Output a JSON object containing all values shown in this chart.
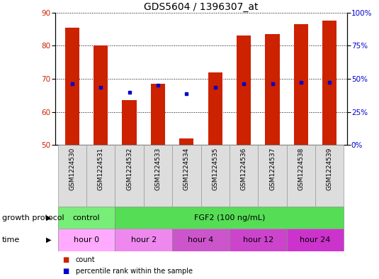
{
  "title": "GDS5604 / 1396307_at",
  "samples": [
    "GSM1224530",
    "GSM1224531",
    "GSM1224532",
    "GSM1224533",
    "GSM1224534",
    "GSM1224535",
    "GSM1224536",
    "GSM1224537",
    "GSM1224538",
    "GSM1224539"
  ],
  "count_values": [
    85.5,
    80.0,
    63.5,
    68.5,
    52.0,
    72.0,
    83.0,
    83.5,
    86.5,
    87.5
  ],
  "percentile_values": [
    68.5,
    67.5,
    66.0,
    68.0,
    65.5,
    67.5,
    68.5,
    68.5,
    69.0,
    69.0
  ],
  "ylim_left": [
    50,
    90
  ],
  "ylim_right": [
    0,
    100
  ],
  "yticks_left": [
    50,
    60,
    70,
    80,
    90
  ],
  "yticks_right": [
    0,
    25,
    50,
    75,
    100
  ],
  "ytick_labels_right": [
    "0%",
    "25%",
    "50%",
    "75%",
    "100%"
  ],
  "bar_color": "#cc2200",
  "percentile_color": "#0000cc",
  "bar_width": 0.5,
  "bar_bottom": 50,
  "growth_protocol_label": "growth protocol",
  "time_label": "time",
  "protocol_groups": [
    {
      "label": "control",
      "samples": [
        0,
        1
      ],
      "color": "#77ee77"
    },
    {
      "label": "FGF2 (100 ng/mL)",
      "samples": [
        2,
        9
      ],
      "color": "#55dd55"
    }
  ],
  "time_groups": [
    {
      "label": "hour 0",
      "samples": [
        0,
        1
      ],
      "color": "#ffaaff"
    },
    {
      "label": "hour 2",
      "samples": [
        2,
        3
      ],
      "color": "#ee88ee"
    },
    {
      "label": "hour 4",
      "samples": [
        4,
        5
      ],
      "color": "#cc55cc"
    },
    {
      "label": "hour 12",
      "samples": [
        6,
        7
      ],
      "color": "#cc44cc"
    },
    {
      "label": "hour 24",
      "samples": [
        8,
        9
      ],
      "color": "#cc33cc"
    }
  ],
  "legend_count_label": "count",
  "legend_percentile_label": "percentile rank within the sample",
  "title_fontsize": 10,
  "tick_fontsize": 7.5,
  "sample_fontsize": 6.5,
  "row_label_fontsize": 8,
  "row_cell_fontsize": 8
}
